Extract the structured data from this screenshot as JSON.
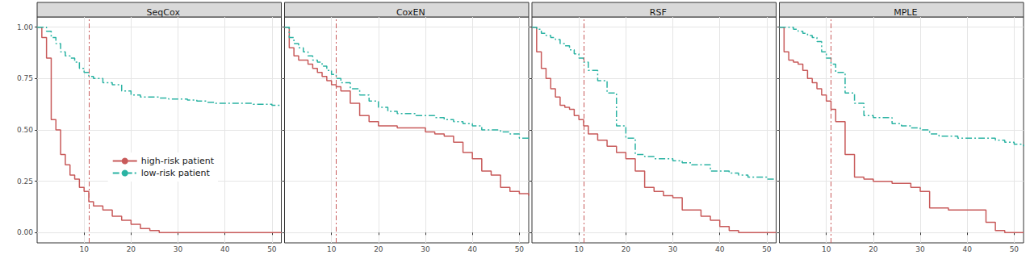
{
  "chart_data": [
    {
      "type": "line",
      "title": "SeqCox",
      "x": [
        0,
        1,
        2,
        3,
        4,
        5,
        6,
        7,
        8,
        9,
        10,
        11,
        12,
        14,
        16,
        18,
        20,
        22,
        24,
        26,
        28,
        30,
        32,
        34,
        36,
        38,
        40,
        42,
        44,
        46,
        48,
        50,
        52
      ],
      "series": [
        {
          "name": "high-risk patient",
          "color": "#c85a5a",
          "line_style": "solid",
          "values": [
            1,
            0.95,
            0.85,
            0.55,
            0.5,
            0.38,
            0.33,
            0.28,
            0.26,
            0.22,
            0.2,
            0.15,
            0.13,
            0.11,
            0.08,
            0.06,
            0.04,
            0.02,
            0.01,
            0,
            0,
            0,
            0,
            0,
            0,
            0,
            0,
            0,
            0,
            0,
            0,
            0,
            0
          ]
        },
        {
          "name": "low-risk patient",
          "color": "#2bb3a3",
          "line_style": "dashdot",
          "values": [
            1,
            1,
            0.98,
            0.95,
            0.92,
            0.88,
            0.86,
            0.85,
            0.83,
            0.8,
            0.78,
            0.76,
            0.75,
            0.73,
            0.72,
            0.69,
            0.67,
            0.66,
            0.66,
            0.655,
            0.65,
            0.65,
            0.645,
            0.64,
            0.635,
            0.63,
            0.63,
            0.63,
            0.63,
            0.625,
            0.625,
            0.62,
            0.62
          ]
        }
      ],
      "reference_x": 11,
      "xlim": [
        0,
        52
      ],
      "xticks": [
        10,
        20,
        30,
        40,
        50
      ],
      "ylim": [
        -0.05,
        1.05
      ],
      "yticks": [
        {
          "value": 0,
          "label": "0.00"
        },
        {
          "value": 0.25,
          "label": "0.25"
        },
        {
          "value": 0.5,
          "label": "0.50"
        },
        {
          "value": 0.75,
          "label": "0.75"
        },
        {
          "value": 1,
          "label": "1.00"
        }
      ],
      "grid": true,
      "legend": "left",
      "tick_labels": true
    },
    {
      "type": "line",
      "title": "CoxEN",
      "x": [
        0,
        1,
        2,
        3,
        4,
        5,
        6,
        7,
        8,
        9,
        10,
        11,
        12,
        14,
        16,
        18,
        20,
        22,
        24,
        26,
        28,
        30,
        32,
        34,
        36,
        38,
        40,
        42,
        44,
        46,
        48,
        50,
        52
      ],
      "series": [
        {
          "name": "high-risk patient",
          "color": "#c85a5a",
          "line_style": "solid",
          "values": [
            1,
            0.9,
            0.86,
            0.84,
            0.84,
            0.82,
            0.8,
            0.78,
            0.76,
            0.74,
            0.72,
            0.71,
            0.69,
            0.63,
            0.57,
            0.54,
            0.52,
            0.52,
            0.51,
            0.51,
            0.51,
            0.49,
            0.48,
            0.47,
            0.44,
            0.39,
            0.36,
            0.3,
            0.28,
            0.22,
            0.2,
            0.19,
            0.18
          ]
        },
        {
          "name": "low-risk patient",
          "color": "#2bb3a3",
          "line_style": "dashdot",
          "values": [
            1,
            0.95,
            0.92,
            0.9,
            0.88,
            0.86,
            0.84,
            0.83,
            0.81,
            0.79,
            0.77,
            0.75,
            0.73,
            0.7,
            0.67,
            0.64,
            0.61,
            0.59,
            0.58,
            0.58,
            0.57,
            0.57,
            0.56,
            0.55,
            0.54,
            0.53,
            0.52,
            0.5,
            0.5,
            0.49,
            0.48,
            0.46,
            0.45
          ]
        }
      ],
      "reference_x": 11,
      "xlim": [
        0,
        52
      ],
      "xticks": [
        10,
        20,
        30,
        40,
        50
      ],
      "ylim": [
        -0.05,
        1.05
      ],
      "yticks": [
        {
          "value": 0,
          "label": "0.00"
        },
        {
          "value": 0.25,
          "label": "0.25"
        },
        {
          "value": 0.5,
          "label": "0.50"
        },
        {
          "value": 0.75,
          "label": "0.75"
        },
        {
          "value": 1,
          "label": "1.00"
        }
      ],
      "grid": true,
      "tick_labels": "x"
    },
    {
      "type": "line",
      "title": "RSF",
      "x": [
        0,
        1,
        2,
        3,
        4,
        5,
        6,
        7,
        8,
        9,
        10,
        11,
        12,
        14,
        16,
        18,
        20,
        22,
        24,
        26,
        28,
        30,
        32,
        34,
        36,
        38,
        40,
        42,
        44,
        46,
        48,
        50,
        52
      ],
      "series": [
        {
          "name": "high-risk patient",
          "color": "#c85a5a",
          "line_style": "solid",
          "values": [
            1,
            0.88,
            0.8,
            0.75,
            0.7,
            0.66,
            0.62,
            0.61,
            0.6,
            0.57,
            0.55,
            0.52,
            0.48,
            0.45,
            0.42,
            0.39,
            0.36,
            0.3,
            0.22,
            0.2,
            0.18,
            0.17,
            0.11,
            0.11,
            0.08,
            0.06,
            0.03,
            0.01,
            0,
            0,
            0,
            0,
            0
          ]
        },
        {
          "name": "low-risk patient",
          "color": "#2bb3a3",
          "line_style": "dashdot",
          "values": [
            1,
            0.99,
            0.97,
            0.96,
            0.95,
            0.94,
            0.92,
            0.91,
            0.89,
            0.87,
            0.85,
            0.83,
            0.79,
            0.74,
            0.68,
            0.52,
            0.46,
            0.38,
            0.37,
            0.36,
            0.36,
            0.35,
            0.34,
            0.33,
            0.33,
            0.3,
            0.3,
            0.29,
            0.28,
            0.27,
            0.27,
            0.26,
            0.26
          ]
        }
      ],
      "reference_x": 11,
      "xlim": [
        0,
        52
      ],
      "xticks": [
        10,
        20,
        30,
        40,
        50
      ],
      "ylim": [
        -0.05,
        1.05
      ],
      "yticks": [
        {
          "value": 0,
          "label": "0.00"
        },
        {
          "value": 0.25,
          "label": "0.25"
        },
        {
          "value": 0.5,
          "label": "0.50"
        },
        {
          "value": 0.75,
          "label": "0.75"
        },
        {
          "value": 1,
          "label": "1.00"
        }
      ],
      "grid": true,
      "tick_labels": "x"
    },
    {
      "type": "line",
      "title": "MPLE",
      "x": [
        0,
        1,
        2,
        3,
        4,
        5,
        6,
        7,
        8,
        9,
        10,
        11,
        12,
        14,
        16,
        18,
        20,
        22,
        24,
        26,
        28,
        30,
        32,
        34,
        36,
        38,
        40,
        42,
        44,
        46,
        48,
        50,
        52
      ],
      "series": [
        {
          "name": "high-risk patient",
          "color": "#c85a5a",
          "line_style": "solid",
          "values": [
            1,
            0.88,
            0.84,
            0.83,
            0.82,
            0.79,
            0.75,
            0.73,
            0.7,
            0.67,
            0.64,
            0.6,
            0.54,
            0.38,
            0.27,
            0.26,
            0.25,
            0.25,
            0.24,
            0.24,
            0.22,
            0.2,
            0.12,
            0.12,
            0.11,
            0.11,
            0.11,
            0.11,
            0.05,
            0.01,
            0,
            0,
            0
          ]
        },
        {
          "name": "low-risk patient",
          "color": "#2bb3a3",
          "line_style": "dashdot",
          "values": [
            1,
            1,
            1,
            0.99,
            0.98,
            0.97,
            0.96,
            0.95,
            0.93,
            0.88,
            0.85,
            0.82,
            0.78,
            0.68,
            0.63,
            0.57,
            0.56,
            0.56,
            0.53,
            0.52,
            0.51,
            0.5,
            0.48,
            0.47,
            0.47,
            0.46,
            0.46,
            0.46,
            0.46,
            0.45,
            0.44,
            0.43,
            0.42
          ]
        }
      ],
      "reference_x": 11,
      "xlim": [
        0,
        52
      ],
      "xticks": [
        10,
        20,
        30,
        40,
        50
      ],
      "ylim": [
        -0.05,
        1.05
      ],
      "yticks": [
        {
          "value": 0,
          "label": "0.00"
        },
        {
          "value": 0.25,
          "label": "0.25"
        },
        {
          "value": 0.5,
          "label": "0.50"
        },
        {
          "value": 0.75,
          "label": "0.75"
        },
        {
          "value": 1,
          "label": "1.00"
        }
      ],
      "grid": true,
      "tick_labels": "x"
    }
  ]
}
